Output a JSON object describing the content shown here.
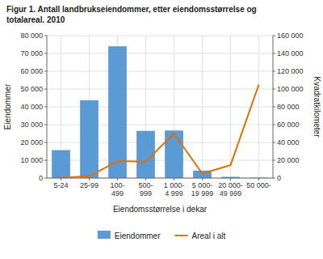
{
  "chart_data": {
    "type": "bar",
    "title": "Figur 1. Antall landbrukseiendommer, etter eiendomsstørrelse og\ntotalareal. 2010",
    "categories": [
      "5-24",
      "25-99",
      "100-\n499",
      "500-\n999",
      "1 000-\n4 999",
      "5 000-\n19 999",
      "20 000-\n49 999",
      "50 000-"
    ],
    "series": [
      {
        "name": "Eiendommer",
        "type": "bar",
        "color": "#5b9bd5",
        "values": [
          15700,
          43700,
          74000,
          26500,
          26700,
          4200,
          700,
          200
        ]
      },
      {
        "name": "Areal i alt",
        "type": "line",
        "color": "#e07000",
        "axis": "y2",
        "values": [
          500,
          2000,
          19000,
          18500,
          50000,
          5000,
          14500,
          105000
        ]
      }
    ],
    "xlabel": "Eiendomsstørrelse i dekar",
    "ylabel": "Eiendommer",
    "y2label": "Kvadratkilometer",
    "ylim": [
      0,
      80000
    ],
    "yticks": [
      0,
      {
        "value": 10000,
        "label": "10 000"
      },
      {
        "value": 20000,
        "label": "20 000"
      },
      {
        "value": 30000,
        "label": "30 000"
      },
      {
        "value": 40000,
        "label": "40 000"
      },
      {
        "value": 50000,
        "label": "50 000"
      },
      {
        "value": 60000,
        "label": "60 000"
      },
      {
        "value": 70000,
        "label": "70 000"
      },
      {
        "value": 80000,
        "label": "80 000"
      }
    ],
    "y2lim": [
      0,
      160000
    ],
    "y2ticks": [
      0,
      {
        "value": 20000,
        "label": "20 000"
      },
      {
        "value": 40000,
        "label": "40 000"
      },
      {
        "value": 60000,
        "label": "60 000"
      },
      {
        "value": 80000,
        "label": "80 000"
      },
      {
        "value": 100000,
        "label": "100 000"
      },
      {
        "value": 120000,
        "label": "120 000"
      },
      {
        "value": 140000,
        "label": "140 000"
      },
      {
        "value": 160000,
        "label": "160 000"
      }
    ],
    "grid": true,
    "legend": "bottom"
  }
}
